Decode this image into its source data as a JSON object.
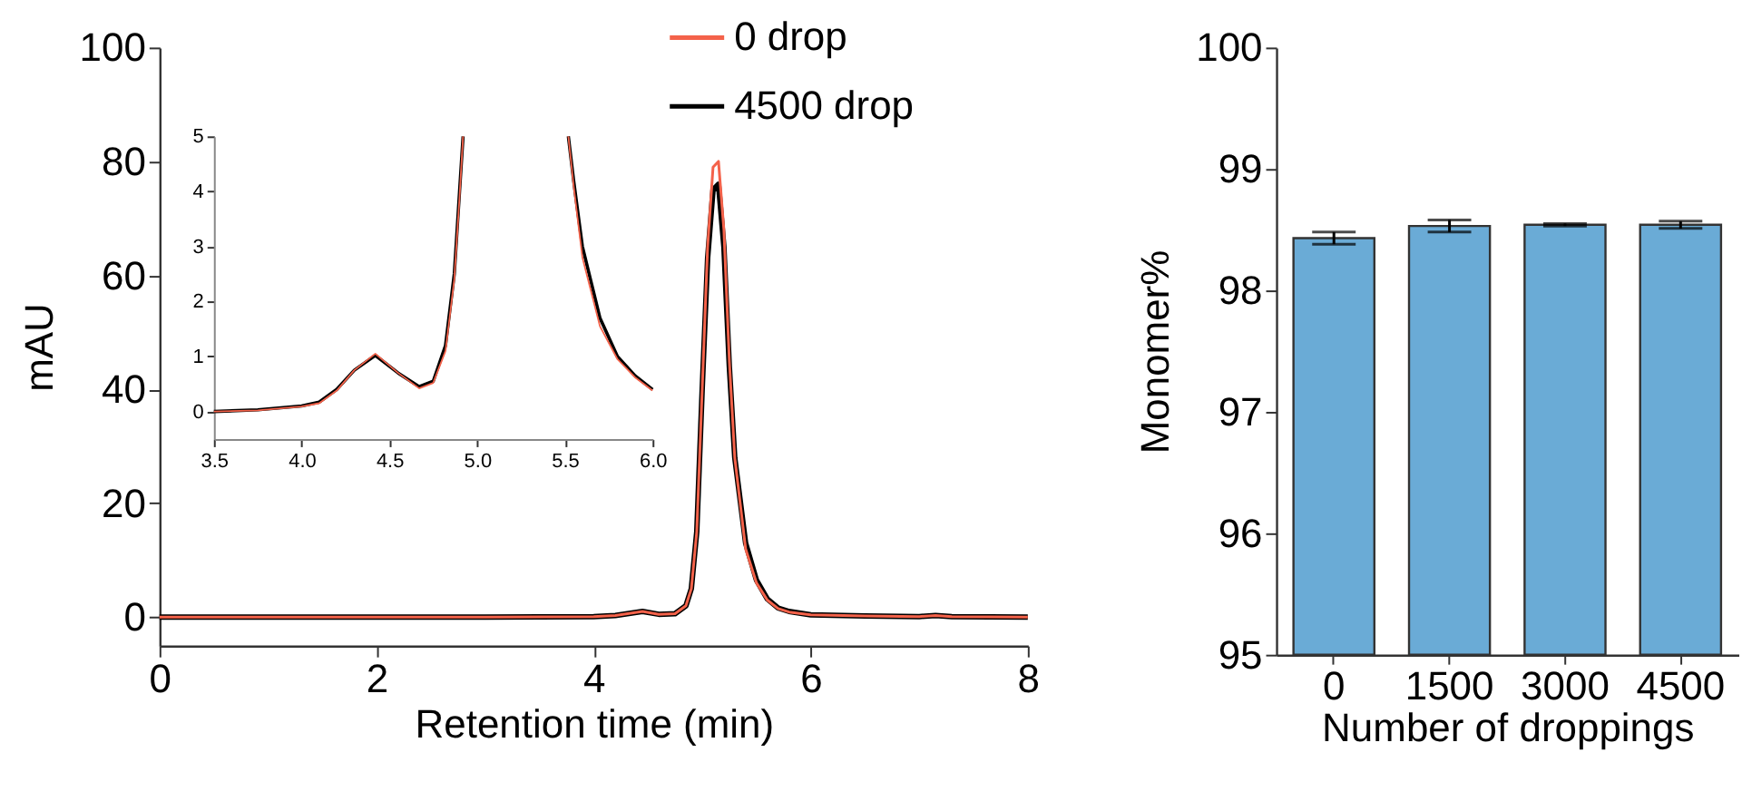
{
  "chart_data": [
    {
      "type": "line",
      "xlabel": "Retention time (min)",
      "ylabel": "mAU",
      "xlim": [
        0,
        8
      ],
      "ylim": [
        -5,
        100
      ],
      "xticks": [
        0,
        2,
        4,
        6,
        8
      ],
      "yticks": [
        0,
        20,
        40,
        60,
        80,
        100
      ],
      "grid": false,
      "legend": "top right",
      "line_style": "solid",
      "marker": "none",
      "x": [
        0,
        1,
        2,
        3,
        4,
        4.2,
        4.45,
        4.6,
        4.75,
        4.85,
        4.9,
        4.95,
        5.0,
        5.05,
        5.1,
        5.15,
        5.2,
        5.25,
        5.3,
        5.4,
        5.5,
        5.6,
        5.7,
        5.8,
        6.0,
        6.5,
        7.0,
        7.15,
        7.3,
        8
      ],
      "series": [
        {
          "name": "0 drop",
          "color": "#f4624a",
          "values": [
            0,
            0,
            0,
            0,
            0.1,
            0.3,
            1.0,
            0.5,
            0.6,
            2,
            5,
            15,
            40,
            65,
            79,
            80,
            68,
            45,
            28,
            12,
            6,
            3,
            1.5,
            0.9,
            0.4,
            0.2,
            0.1,
            0.3,
            0.1,
            0
          ]
        },
        {
          "name": "4500 drop",
          "color": "#000000",
          "values": [
            0,
            0,
            0,
            0,
            0.1,
            0.3,
            1.0,
            0.5,
            0.6,
            2,
            5,
            15,
            40,
            63,
            75,
            76,
            65,
            44,
            28,
            13,
            6.5,
            3.2,
            1.6,
            1.0,
            0.4,
            0.2,
            0.1,
            0.3,
            0.1,
            0
          ]
        }
      ]
    },
    {
      "type": "line",
      "xlim": [
        3.5,
        6
      ],
      "ylim": [
        -0.5,
        5
      ],
      "xticks": [
        {
          "value": 3.5,
          "label": "3.5"
        },
        {
          "value": 4,
          "label": "4.0"
        },
        {
          "value": 4.5,
          "label": "4.5"
        },
        {
          "value": 5,
          "label": "5.0"
        },
        {
          "value": 5.5,
          "label": "5.5"
        },
        {
          "value": 6,
          "label": "6.0"
        }
      ],
      "yticks": [
        0,
        1,
        2,
        3,
        4,
        5
      ],
      "grid": false,
      "line_style": "solid",
      "x": [
        3.5,
        3.75,
        4.0,
        4.1,
        4.2,
        4.3,
        4.42,
        4.55,
        4.67,
        4.75,
        4.82,
        4.87,
        4.9,
        4.92,
        5.2,
        5.52,
        5.55,
        5.6,
        5.7,
        5.8,
        5.9,
        6.0
      ],
      "series": [
        {
          "color": "#f4624a",
          "values": [
            0,
            0.02,
            0.09,
            0.15,
            0.38,
            0.75,
            1.05,
            0.7,
            0.42,
            0.52,
            1.1,
            2.4,
            3.9,
            5,
            null,
            5,
            4.1,
            2.8,
            1.55,
            0.95,
            0.62,
            0.38
          ]
        },
        {
          "color": "#000000",
          "values": [
            0,
            0.03,
            0.1,
            0.17,
            0.4,
            0.75,
            1.02,
            0.7,
            0.45,
            0.55,
            1.2,
            2.5,
            4,
            5,
            null,
            5,
            4.2,
            3.0,
            1.7,
            1.0,
            0.65,
            0.4
          ]
        }
      ]
    },
    {
      "type": "bar",
      "xlabel": "Number of droppings",
      "ylabel": "Monomer%",
      "categories": [
        "0",
        "1500",
        "3000",
        "4500"
      ],
      "values": [
        98.43,
        98.53,
        98.54,
        98.54
      ],
      "errors": [
        0.05,
        0.05,
        0.01,
        0.03
      ],
      "color": "#6aabd6",
      "ylim": [
        95,
        100
      ],
      "yticks": [
        95,
        96,
        97,
        98,
        99,
        100
      ],
      "grid": false
    }
  ]
}
